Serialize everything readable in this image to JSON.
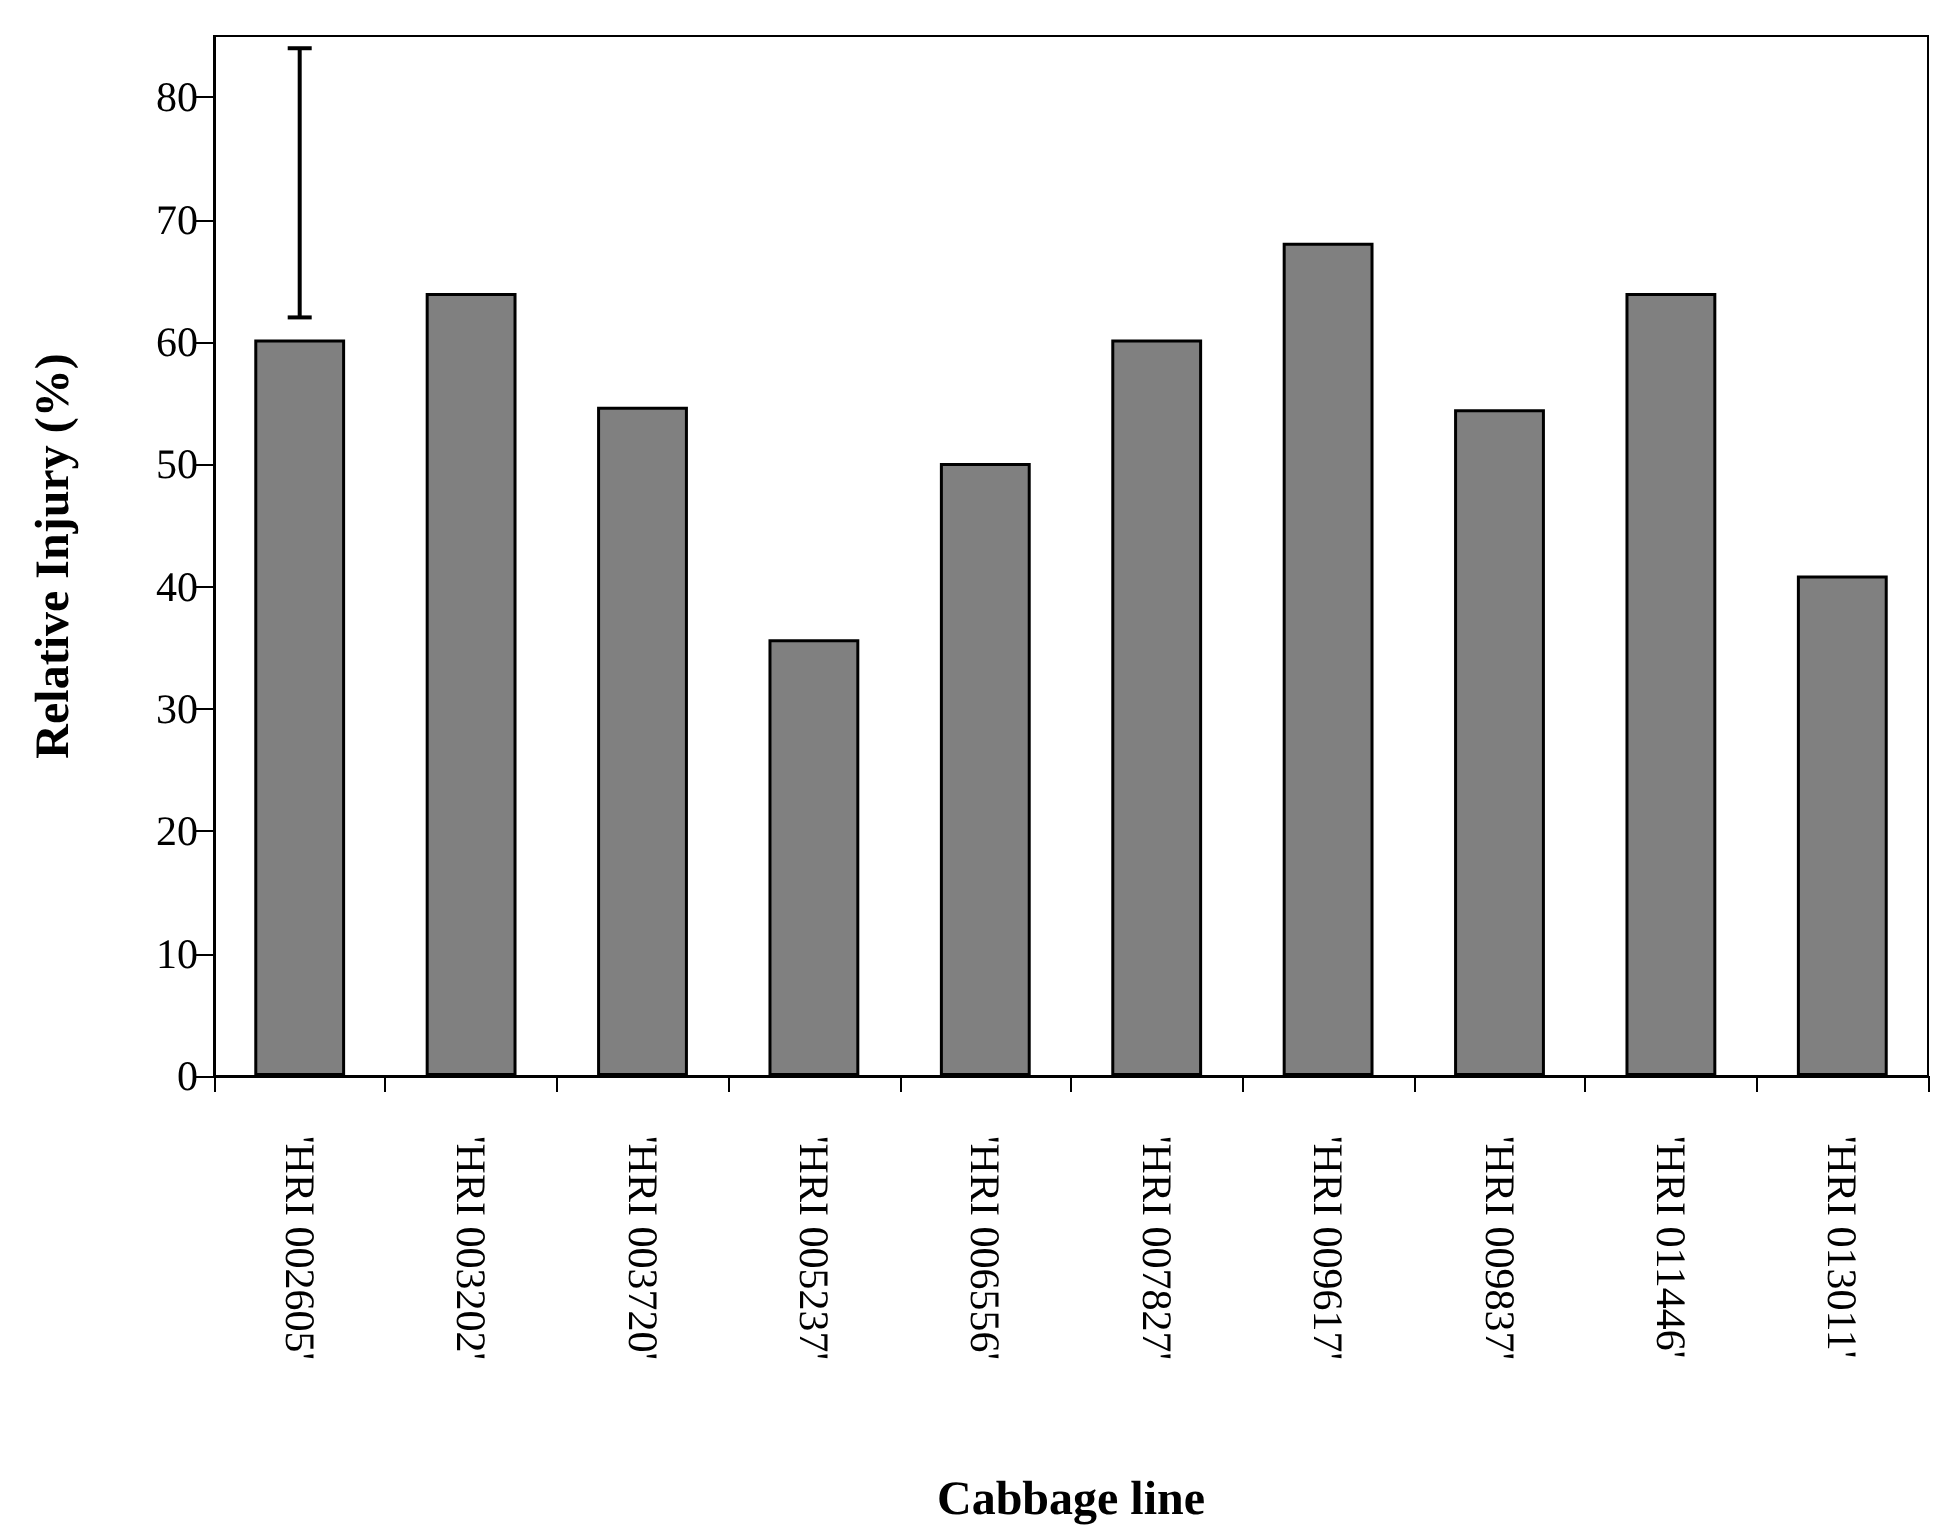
{
  "chart_data": {
    "type": "bar",
    "xlabel": "Cabbage line",
    "ylabel": "Relative Injury (%)",
    "categories": [
      "'HRI 002605'",
      "'HRI 003202'",
      "'HRI 003720'",
      "'HRI 005237'",
      "'HRI 006556'",
      "'HRI 007827'",
      "'HRI 009617'",
      "'HRI 009837'",
      "'HRI 011446'",
      "'HRI 013011'"
    ],
    "values": [
      60.2,
      64.0,
      54.7,
      35.7,
      50.1,
      60.2,
      68.1,
      54.5,
      64.0,
      40.9
    ],
    "errors": [
      [
        62,
        84
      ],
      null,
      null,
      null,
      null,
      null,
      null,
      null,
      null,
      null
    ],
    "color": "#808080",
    "ylim": [
      0,
      85
    ],
    "yticks": [
      0,
      10,
      20,
      30,
      40,
      50,
      60,
      70,
      80
    ]
  }
}
